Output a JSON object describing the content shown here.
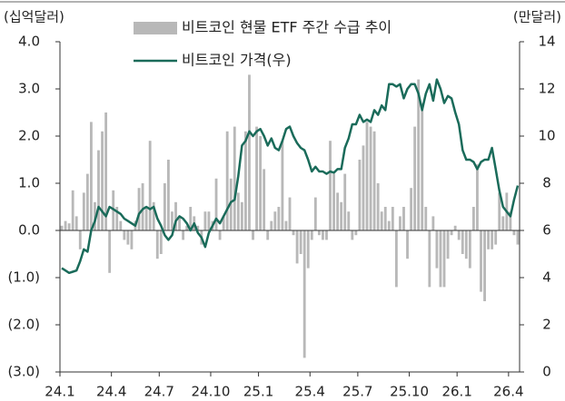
{
  "chart_data": {
    "type": "bar_line",
    "y_axis_label": "(십억달러)",
    "y2_axis_label": "(만달러)",
    "categories": [
      "24.1",
      null,
      null,
      null,
      null,
      null,
      null,
      null,
      null,
      null,
      null,
      null,
      null,
      null,
      "24.4",
      null,
      null,
      null,
      null,
      null,
      null,
      null,
      null,
      null,
      null,
      null,
      null,
      "24.7",
      null,
      null,
      null,
      null,
      null,
      null,
      null,
      null,
      null,
      null,
      null,
      null,
      null,
      "24.10",
      null,
      null,
      null,
      null,
      null,
      null,
      null,
      null,
      null,
      null,
      null,
      null,
      "25.1",
      null,
      null,
      null,
      null,
      null,
      null,
      null,
      null,
      null,
      null,
      null,
      null,
      null,
      "25.4",
      null,
      null,
      null,
      null,
      null,
      null,
      null,
      null,
      null,
      null,
      null,
      null,
      "25.7",
      null,
      null,
      null,
      null,
      null,
      null,
      null,
      null,
      null,
      null,
      null,
      null,
      null,
      "25.10",
      null,
      null,
      null,
      null,
      null,
      null,
      null,
      null,
      null,
      null,
      null,
      null,
      "26.1",
      null,
      null,
      null,
      null,
      null,
      null,
      null,
      null,
      null,
      null,
      null,
      null,
      null,
      "26.4",
      null,
      null
    ],
    "series": [
      {
        "name": "비트코인 현물 ETF 주간 수급 추이",
        "type": "bar",
        "color": "#b8b8b8",
        "values": [
          0.1,
          0.2,
          0.15,
          0.85,
          0.3,
          -0.4,
          0.8,
          1.2,
          2.3,
          0.6,
          1.7,
          2.1,
          2.5,
          -0.9,
          0.85,
          0.5,
          0.2,
          -0.2,
          -0.3,
          -0.4,
          0.2,
          0.9,
          1.0,
          0.5,
          1.9,
          0.6,
          -0.6,
          -0.5,
          1.0,
          1.5,
          0.4,
          0.6,
          0.3,
          -0.2,
          0.1,
          0.5,
          0.3,
          0.1,
          -0.3,
          0.4,
          0.4,
          0.2,
          1.1,
          -0.2,
          0.3,
          2.1,
          1.1,
          2.2,
          0.8,
          0.6,
          2.1,
          3.3,
          -0.2,
          2.2,
          2.0,
          1.3,
          -0.2,
          0.2,
          0.4,
          0.5,
          1.9,
          0.2,
          0.7,
          -0.1,
          -0.7,
          -0.5,
          -2.7,
          -0.8,
          -0.2,
          0.7,
          -0.1,
          -0.2,
          -0.2,
          1.9,
          1.2,
          0.8,
          0.6,
          1.2,
          0.4,
          -0.2,
          -0.1,
          1.5,
          1.8,
          2.3,
          2.2,
          2.1,
          1.0,
          0.4,
          0.5,
          0.2,
          0.5,
          -1.2,
          0.3,
          0.5,
          -0.6,
          0.9,
          2.2,
          3.2,
          2.7,
          0.5,
          -1.2,
          0.3,
          -0.8,
          -1.2,
          -1.2,
          -0.6,
          -0.1,
          0.1,
          -0.2,
          -0.5,
          -0.6,
          -0.8,
          0.5,
          1.4,
          -1.3,
          -1.5,
          -0.4,
          -0.4,
          -0.3,
          0.8,
          0.3,
          0.8,
          0.4,
          -0.1,
          -0.3
        ]
      },
      {
        "name": "비트코인 가격(우)",
        "type": "line",
        "axis": "y2",
        "color": "#1a6b5a",
        "values": [
          4.4,
          4.3,
          4.2,
          4.25,
          4.3,
          4.7,
          5.2,
          5.1,
          6.0,
          6.4,
          7.0,
          6.8,
          6.6,
          7.0,
          6.9,
          6.8,
          6.7,
          6.5,
          6.4,
          6.3,
          6.2,
          6.7,
          6.9,
          7.0,
          6.9,
          7.0,
          6.5,
          6.2,
          5.8,
          5.6,
          5.8,
          6.4,
          6.6,
          6.5,
          6.3,
          6.0,
          6.3,
          5.9,
          5.7,
          5.3,
          5.9,
          6.2,
          6.5,
          6.3,
          6.6,
          6.9,
          7.2,
          7.3,
          8.3,
          9.6,
          9.8,
          10.2,
          10.0,
          10.2,
          10.3,
          10.0,
          9.6,
          9.9,
          9.5,
          9.4,
          9.8,
          10.3,
          10.4,
          10.0,
          9.7,
          9.5,
          9.4,
          9.0,
          8.5,
          8.7,
          8.5,
          8.5,
          8.4,
          8.5,
          8.45,
          8.6,
          8.6,
          9.5,
          9.9,
          10.5,
          10.5,
          10.9,
          10.6,
          10.7,
          10.6,
          11.1,
          10.9,
          11.3,
          11.1,
          12.2,
          12.2,
          12.1,
          12.2,
          11.6,
          12.0,
          12.2,
          12.2,
          11.8,
          11.1,
          11.8,
          12.2,
          11.5,
          12.4,
          12.0,
          11.4,
          11.7,
          11.6,
          11.0,
          10.5,
          9.4,
          9.0,
          9.0,
          8.9,
          8.6,
          8.9,
          9.0,
          9.0,
          9.5,
          8.6,
          7.7,
          7.0,
          6.8,
          6.6,
          7.3,
          7.9
        ]
      }
    ],
    "ylim": [
      -3,
      4
    ],
    "yticks": [
      {
        "value": -3,
        "label": "(3.0)"
      },
      {
        "value": -2,
        "label": "(2.0)"
      },
      {
        "value": -1,
        "label": "(1.0)"
      },
      {
        "value": 0,
        "label": "0.0"
      },
      {
        "value": 1,
        "label": "1.0"
      },
      {
        "value": 2,
        "label": "2.0"
      },
      {
        "value": 3,
        "label": "3.0"
      },
      {
        "value": 4,
        "label": "4.0"
      }
    ],
    "y2lim": [
      0,
      14
    ],
    "y2ticks": [
      0,
      2,
      4,
      6,
      8,
      10,
      12,
      14
    ]
  }
}
